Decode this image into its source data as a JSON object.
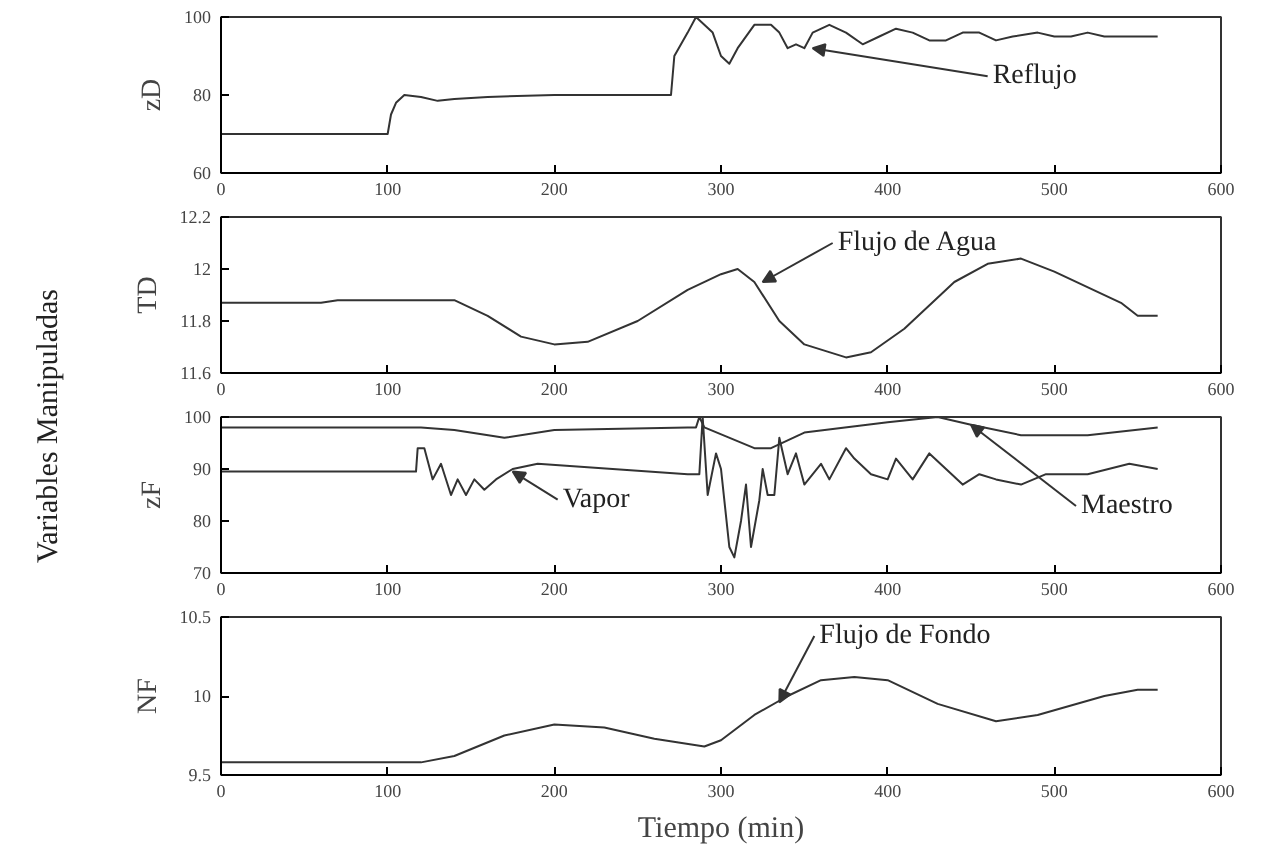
{
  "chart_data": [
    {
      "type": "line",
      "ylabel": "zD",
      "xlim": [
        0,
        600
      ],
      "xticks": [
        0,
        100,
        200,
        300,
        400,
        500,
        600
      ],
      "ylim": [
        60,
        100
      ],
      "yticks": [
        60,
        80,
        100
      ],
      "annotations": [
        "Variables Manipuladas",
        {
          "text": "Reflujo",
          "x": 355,
          "y": 92
        }
      ],
      "series": [
        {
          "color": "#333333",
          "x": [
            0,
            100,
            102,
            105,
            110,
            120,
            130,
            140,
            160,
            200,
            270,
            272,
            280,
            285,
            290,
            295,
            300,
            305,
            310,
            320,
            330,
            335,
            340,
            345,
            350,
            355,
            365,
            375,
            385,
            395,
            405,
            415,
            425,
            435,
            445,
            455,
            465,
            475,
            490,
            500,
            510,
            520,
            530,
            540,
            562
          ],
          "values": [
            70,
            70,
            75,
            78,
            80,
            79.5,
            78.5,
            79,
            79.5,
            80,
            80,
            90,
            96,
            100,
            98,
            96,
            90,
            88,
            92,
            98,
            98,
            96,
            92,
            93,
            92,
            96,
            98,
            96,
            93,
            95,
            97,
            96,
            94,
            94,
            96,
            96,
            94,
            95,
            96,
            95,
            95,
            96,
            95,
            95,
            95
          ]
        }
      ]
    },
    {
      "type": "line",
      "ylabel": "TD",
      "xlim": [
        0,
        600
      ],
      "xticks": [
        0,
        100,
        200,
        300,
        400,
        500,
        600
      ],
      "ylim": [
        11.6,
        12.2
      ],
      "yticks": [
        11.6,
        11.8,
        12,
        12.2
      ],
      "annotations": [
        {
          "text": "Flujo de Agua",
          "x": 325,
          "y": 11.95
        }
      ],
      "series": [
        {
          "color": "#333333",
          "x": [
            0,
            60,
            70,
            140,
            160,
            180,
            200,
            220,
            250,
            280,
            300,
            310,
            320,
            335,
            350,
            375,
            390,
            410,
            440,
            460,
            480,
            500,
            540,
            550,
            562
          ],
          "values": [
            11.87,
            11.87,
            11.88,
            11.88,
            11.82,
            11.74,
            11.71,
            11.72,
            11.8,
            11.92,
            11.98,
            12.0,
            11.95,
            11.8,
            11.71,
            11.66,
            11.68,
            11.77,
            11.95,
            12.02,
            12.04,
            11.99,
            11.87,
            11.82,
            11.82
          ]
        }
      ]
    },
    {
      "type": "line",
      "ylabel": "zF",
      "xlim": [
        0,
        600
      ],
      "xticks": [
        0,
        100,
        200,
        300,
        400,
        500,
        600
      ],
      "ylim": [
        70,
        100
      ],
      "yticks": [
        70,
        80,
        90,
        100
      ],
      "annotations": [
        {
          "text": "Vapor",
          "x": 175,
          "y": 89.5
        },
        {
          "text": "Maestro",
          "x": 450,
          "y": 98.5
        }
      ],
      "series": [
        {
          "color": "#333333",
          "x": [
            0,
            120,
            140,
            170,
            200,
            280,
            285,
            287,
            290,
            320,
            330,
            350,
            400,
            430,
            450,
            480,
            520,
            562
          ],
          "values": [
            98,
            98,
            97.5,
            96,
            97.5,
            98,
            98,
            100,
            98,
            94,
            94,
            97,
            99,
            100,
            98.5,
            96.5,
            96.5,
            98
          ]
        },
        {
          "color": "#333333",
          "x": [
            0,
            117,
            118,
            122,
            127,
            132,
            138,
            142,
            147,
            152,
            158,
            165,
            175,
            190,
            280,
            287,
            289,
            292,
            297,
            300,
            305,
            308,
            312,
            315,
            318,
            323,
            325,
            328,
            332,
            335,
            340,
            345,
            350,
            360,
            365,
            375,
            380,
            390,
            400,
            405,
            415,
            425,
            435,
            445,
            455,
            465,
            480,
            495,
            520,
            545,
            562
          ],
          "values": [
            89.5,
            89.5,
            94,
            94,
            88,
            91,
            85,
            88,
            85,
            88,
            86,
            88,
            90,
            91,
            89,
            89,
            100,
            85,
            93,
            90,
            75,
            73,
            80,
            87,
            75,
            84,
            90,
            85,
            85,
            96,
            89,
            93,
            87,
            91,
            88,
            94,
            92,
            89,
            88,
            92,
            88,
            93,
            90,
            87,
            89,
            88,
            87,
            89,
            89,
            91,
            90
          ]
        }
      ]
    },
    {
      "type": "line",
      "ylabel": "NF",
      "xlabel": "Tiempo (min)",
      "xlim": [
        0,
        600
      ],
      "xticks": [
        0,
        100,
        200,
        300,
        400,
        500,
        600
      ],
      "ylim": [
        9.5,
        10.5
      ],
      "yticks": [
        9.5,
        10,
        10.5
      ],
      "annotations": [
        {
          "text": "Flujo de Fondo",
          "x": 335,
          "y": 9.96
        }
      ],
      "series": [
        {
          "color": "#333333",
          "x": [
            0,
            120,
            140,
            170,
            200,
            230,
            260,
            290,
            300,
            320,
            340,
            360,
            380,
            400,
            430,
            465,
            490,
            530,
            550,
            562
          ],
          "values": [
            9.58,
            9.58,
            9.62,
            9.75,
            9.82,
            9.8,
            9.73,
            9.68,
            9.72,
            9.88,
            10.0,
            10.1,
            10.12,
            10.1,
            9.95,
            9.84,
            9.88,
            10.0,
            10.04,
            10.04
          ]
        }
      ]
    }
  ]
}
